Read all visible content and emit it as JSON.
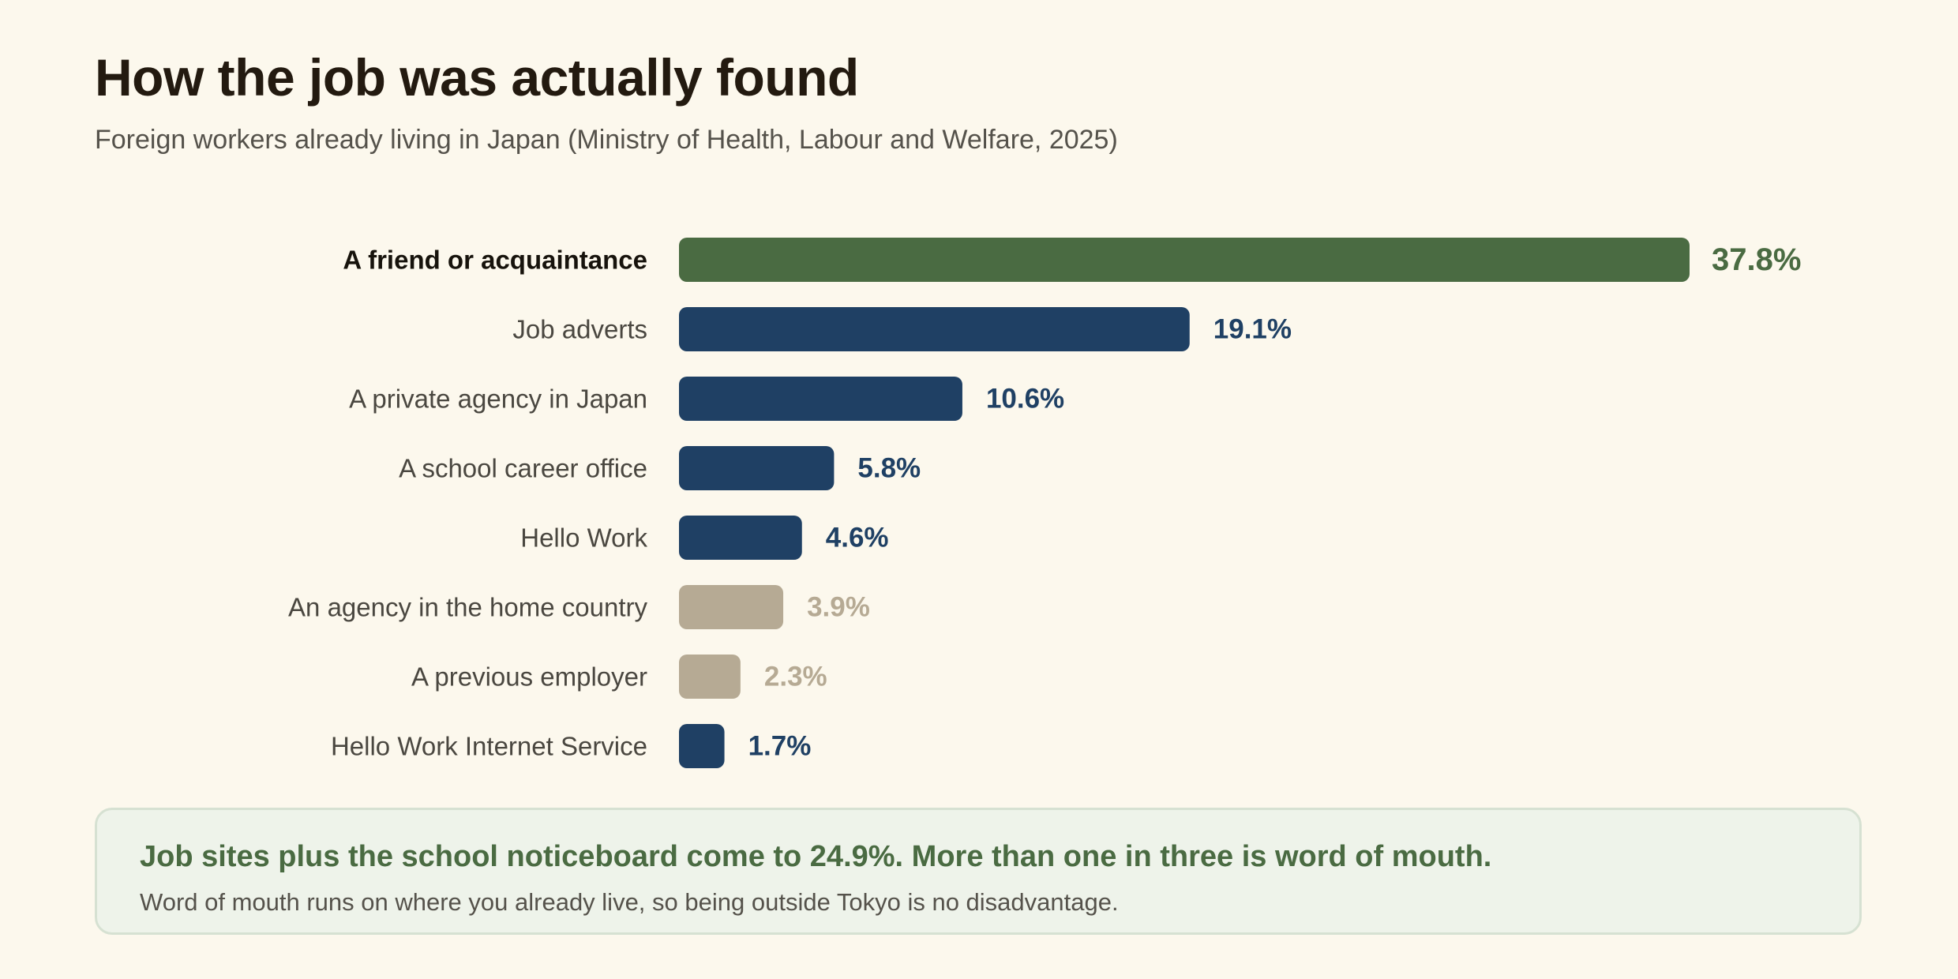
{
  "page": {
    "title": "How the job was actually found",
    "subtitle": "Foreign workers already living in Japan (Ministry of Health, Labour and Welfare, 2025)"
  },
  "chart_data": {
    "type": "bar",
    "orientation": "horizontal",
    "title": "How the job was actually found",
    "subtitle": "Foreign workers already living in Japan (Ministry of Health, Labour and Welfare, 2025)",
    "categories": [
      "A friend or acquaintance",
      "Job adverts",
      "A private agency in Japan",
      "A school career office",
      "Hello Work",
      "An agency in the home country",
      "A previous employer",
      "Hello Work Internet Service"
    ],
    "values": [
      37.8,
      19.1,
      10.6,
      5.8,
      4.6,
      3.9,
      2.3,
      1.7
    ],
    "value_labels": [
      "37.8%",
      "19.1%",
      "10.6%",
      "5.8%",
      "4.6%",
      "3.9%",
      "2.3%",
      "1.7%"
    ],
    "groups": [
      "highlight",
      "domestic",
      "domestic",
      "domestic",
      "domestic",
      "muted",
      "muted",
      "domestic"
    ],
    "colors": {
      "highlight": "#4a6b42",
      "domestic": "#1f4064",
      "muted": "#b6aa94"
    },
    "unit": "%",
    "xlim": [
      0,
      37.8
    ],
    "grid": false,
    "legend": "none",
    "xlabel": "",
    "ylabel": ""
  },
  "callout": {
    "headline": "Job sites plus the school noticeboard come to 24.9%. More than one in three is word of mouth.",
    "body": "Word of mouth runs on where you already live, so being outside Tokyo is no disadvantage."
  }
}
